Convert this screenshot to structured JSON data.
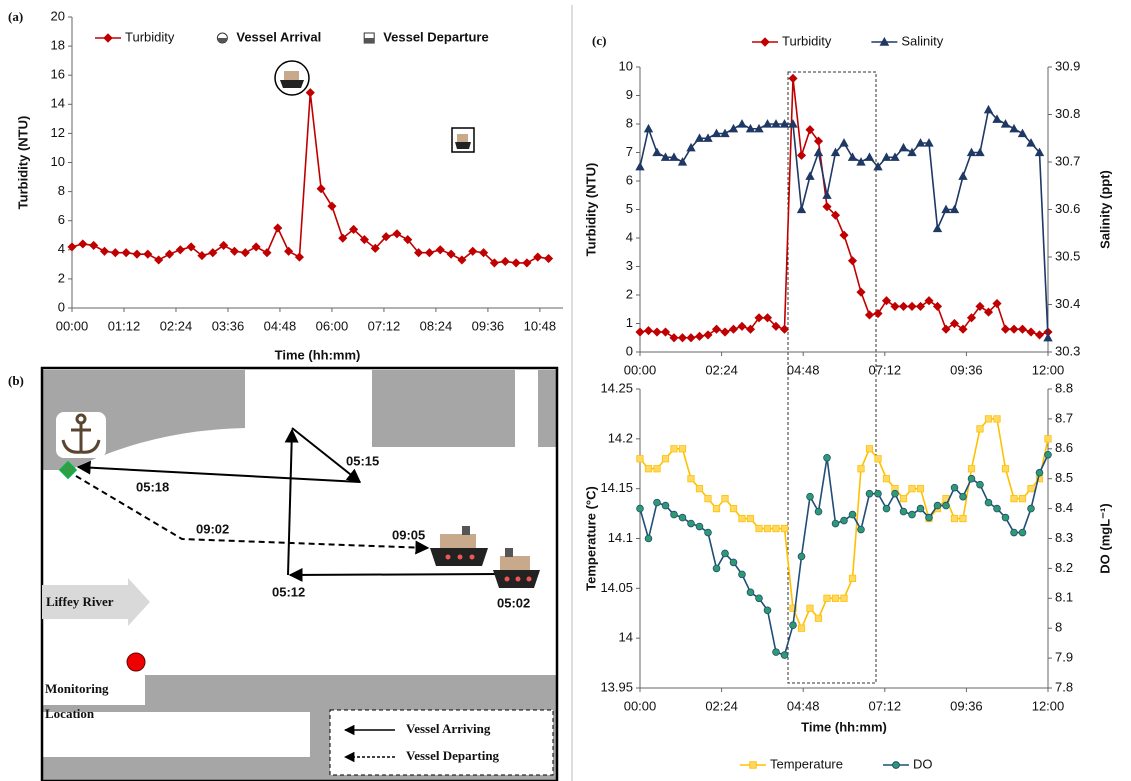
{
  "chart_data": [
    {
      "type": "line",
      "panel": "(a)",
      "xlabel": "Time (hh:mm)",
      "ylabel": "Turbidity (NTU)",
      "x": [
        0,
        15,
        30,
        45,
        60,
        75,
        90,
        105,
        120,
        135,
        150,
        165,
        180,
        195,
        210,
        225,
        240,
        255,
        270,
        285,
        300,
        315,
        330,
        345,
        360,
        375,
        390,
        405,
        420,
        435,
        450,
        465,
        480,
        495,
        510,
        525,
        540,
        555,
        570,
        585,
        600,
        615,
        630,
        645,
        660
      ],
      "series": [
        {
          "name": "Turbidity",
          "color": "#c00000",
          "marker": "diamond",
          "marker_fill": "#c00000",
          "values": [
            4.2,
            4.4,
            4.3,
            3.9,
            3.8,
            3.8,
            3.7,
            3.7,
            3.3,
            3.7,
            4.0,
            4.2,
            3.6,
            3.8,
            4.3,
            3.9,
            3.8,
            4.2,
            3.8,
            5.5,
            3.9,
            3.5,
            14.8,
            8.2,
            7.0,
            4.8,
            5.4,
            4.7,
            4.1,
            4.9,
            5.1,
            4.7,
            3.8,
            3.8,
            4.0,
            3.7,
            3.3,
            3.9,
            3.8,
            3.1,
            3.2,
            3.1,
            3.1,
            3.5,
            3.4
          ]
        }
      ],
      "annotations": [
        {
          "name": "Vessel Arrival"
        },
        {
          "name": "Vessel Departure"
        }
      ],
      "xlim": [
        0,
        680
      ],
      "xticks": [
        {
          "value": 0,
          "label": "00:00"
        },
        {
          "value": 72,
          "label": "01:12"
        },
        {
          "value": 144,
          "label": "02:24"
        },
        {
          "value": 216,
          "label": "03:36"
        },
        {
          "value": 288,
          "label": "04:48"
        },
        {
          "value": 360,
          "label": "06:00"
        },
        {
          "value": 432,
          "label": "07:12"
        },
        {
          "value": 504,
          "label": "08:24"
        },
        {
          "value": 576,
          "label": "09:36"
        },
        {
          "value": 648,
          "label": "10:48"
        }
      ],
      "ylim": [
        0,
        20
      ],
      "yticks": [
        0,
        2,
        4,
        6,
        8,
        10,
        12,
        14,
        16,
        18,
        20
      ],
      "legend": "top"
    },
    {
      "type": "line",
      "panel": "(c)",
      "ylabel": "Turbidity (NTU)",
      "y2label": "Salinity (ppt)",
      "x": [
        0,
        15,
        30,
        45,
        60,
        75,
        90,
        105,
        120,
        135,
        150,
        165,
        180,
        195,
        210,
        225,
        240,
        255,
        270,
        285,
        300,
        315,
        330,
        345,
        360,
        375,
        390,
        405,
        420,
        435,
        450,
        465,
        480,
        495,
        510,
        525,
        540,
        555,
        570,
        585,
        600,
        615,
        630,
        645,
        660,
        675,
        690,
        705,
        720
      ],
      "series": [
        {
          "name": "Turbidity",
          "color": "#c00000",
          "marker": "diamond",
          "marker_fill": "#c00000",
          "values": [
            0.7,
            0.75,
            0.7,
            0.7,
            0.5,
            0.5,
            0.5,
            0.55,
            0.6,
            0.8,
            0.7,
            0.8,
            0.9,
            0.8,
            1.2,
            1.2,
            0.9,
            0.8,
            9.6,
            6.9,
            7.8,
            7.4,
            5.1,
            4.8,
            4.1,
            3.2,
            2.1,
            1.3,
            1.35,
            1.8,
            1.6,
            1.6,
            1.6,
            1.6,
            1.8,
            1.6,
            0.8,
            1.0,
            0.8,
            1.2,
            1.6,
            1.4,
            1.7,
            0.8,
            0.8,
            0.8,
            0.7,
            0.6,
            0.7
          ]
        },
        {
          "name": "Salinity",
          "color": "#1f3864",
          "marker": "triangle",
          "marker_fill": "#1f3864",
          "axis": "y2",
          "values": [
            30.69,
            30.77,
            30.72,
            30.71,
            30.71,
            30.7,
            30.73,
            30.75,
            30.75,
            30.76,
            30.76,
            30.77,
            30.78,
            30.77,
            30.77,
            30.78,
            30.78,
            30.78,
            30.78,
            30.6,
            30.67,
            30.72,
            30.63,
            30.72,
            30.74,
            30.71,
            30.7,
            30.71,
            30.69,
            30.71,
            30.71,
            30.73,
            30.72,
            30.74,
            30.74,
            30.56,
            30.6,
            30.6,
            30.67,
            30.72,
            30.72,
            30.81,
            30.79,
            30.78,
            30.77,
            30.76,
            30.74,
            30.72,
            30.33
          ]
        }
      ],
      "xlim": [
        0,
        720
      ],
      "xticks": [
        {
          "value": 0,
          "label": "00:00"
        },
        {
          "value": 144,
          "label": "02:24"
        },
        {
          "value": 288,
          "label": "04:48"
        },
        {
          "value": 432,
          "label": "07:12"
        },
        {
          "value": 576,
          "label": "09:36"
        },
        {
          "value": 720,
          "label": "12:00"
        }
      ],
      "ylim": [
        0,
        10
      ],
      "yticks": [
        0,
        1,
        2,
        3,
        4,
        5,
        6,
        7,
        8,
        9,
        10
      ],
      "y2lim": [
        30.3,
        30.9
      ],
      "y2ticks": [
        30.3,
        30.4,
        30.5,
        30.6,
        30.7,
        30.8,
        30.9
      ],
      "legend": "top"
    },
    {
      "type": "line",
      "xlabel": "Time (hh:mm)",
      "ylabel": "Temperature (°C)",
      "y2label": "DO (mgL⁻¹)",
      "x": [
        0,
        15,
        30,
        45,
        60,
        75,
        90,
        105,
        120,
        135,
        150,
        165,
        180,
        195,
        210,
        225,
        240,
        255,
        270,
        285,
        300,
        315,
        330,
        345,
        360,
        375,
        390,
        405,
        420,
        435,
        450,
        465,
        480,
        495,
        510,
        525,
        540,
        555,
        570,
        585,
        600,
        615,
        630,
        645,
        660,
        675,
        690,
        705,
        720
      ],
      "series": [
        {
          "name": "Temperature",
          "color": "#ffc000",
          "marker": "square",
          "marker_fill": "#ffd966",
          "values": [
            14.18,
            14.17,
            14.17,
            14.18,
            14.19,
            14.19,
            14.16,
            14.15,
            14.14,
            14.13,
            14.14,
            14.13,
            14.12,
            14.12,
            14.11,
            14.11,
            14.11,
            14.11,
            14.03,
            14.01,
            14.03,
            14.02,
            14.04,
            14.04,
            14.04,
            14.06,
            14.17,
            14.19,
            14.18,
            14.16,
            14.15,
            14.14,
            14.15,
            14.15,
            14.12,
            14.13,
            14.14,
            14.12,
            14.12,
            14.17,
            14.21,
            14.22,
            14.22,
            14.17,
            14.14,
            14.14,
            14.15,
            14.16,
            14.2
          ]
        },
        {
          "name": "DO",
          "color": "#1f4e79",
          "marker": "circle",
          "marker_fill": "#2e9b6e",
          "axis": "y2",
          "values": [
            8.4,
            8.3,
            8.42,
            8.41,
            8.38,
            8.37,
            8.35,
            8.34,
            8.32,
            8.2,
            8.25,
            8.22,
            8.18,
            8.12,
            8.1,
            8.06,
            7.92,
            7.91,
            8.01,
            8.24,
            8.44,
            8.39,
            8.57,
            8.35,
            8.36,
            8.38,
            8.33,
            8.45,
            8.45,
            8.4,
            8.45,
            8.39,
            8.38,
            8.4,
            8.37,
            8.41,
            8.41,
            8.47,
            8.44,
            8.5,
            8.48,
            8.42,
            8.4,
            8.37,
            8.32,
            8.32,
            8.4,
            8.52,
            8.58
          ]
        }
      ],
      "xlim": [
        0,
        720
      ],
      "xticks": [
        {
          "value": 0,
          "label": "00:00"
        },
        {
          "value": 144,
          "label": "02:24"
        },
        {
          "value": 288,
          "label": "04:48"
        },
        {
          "value": 432,
          "label": "07:12"
        },
        {
          "value": 576,
          "label": "09:36"
        },
        {
          "value": 720,
          "label": "12:00"
        }
      ],
      "ylim": [
        13.95,
        14.25
      ],
      "yticks": [
        13.95,
        14,
        14.05,
        14.1,
        14.15,
        14.2,
        14.25
      ],
      "y2lim": [
        7.8,
        8.8
      ],
      "y2ticks": [
        7.8,
        7.9,
        8,
        8.1,
        8.2,
        8.3,
        8.4,
        8.5,
        8.6,
        8.7,
        8.8
      ],
      "legend": "bottom"
    }
  ],
  "diagram": {
    "panel": "(b)",
    "times": [
      "05:15",
      "05:18",
      "09:02",
      "09:05",
      "05:12",
      "05:02"
    ],
    "river": "Liffey River",
    "location": [
      "Monitoring",
      "Location"
    ],
    "legend": [
      "Vessel Arriving",
      "Vessel Departing"
    ]
  }
}
